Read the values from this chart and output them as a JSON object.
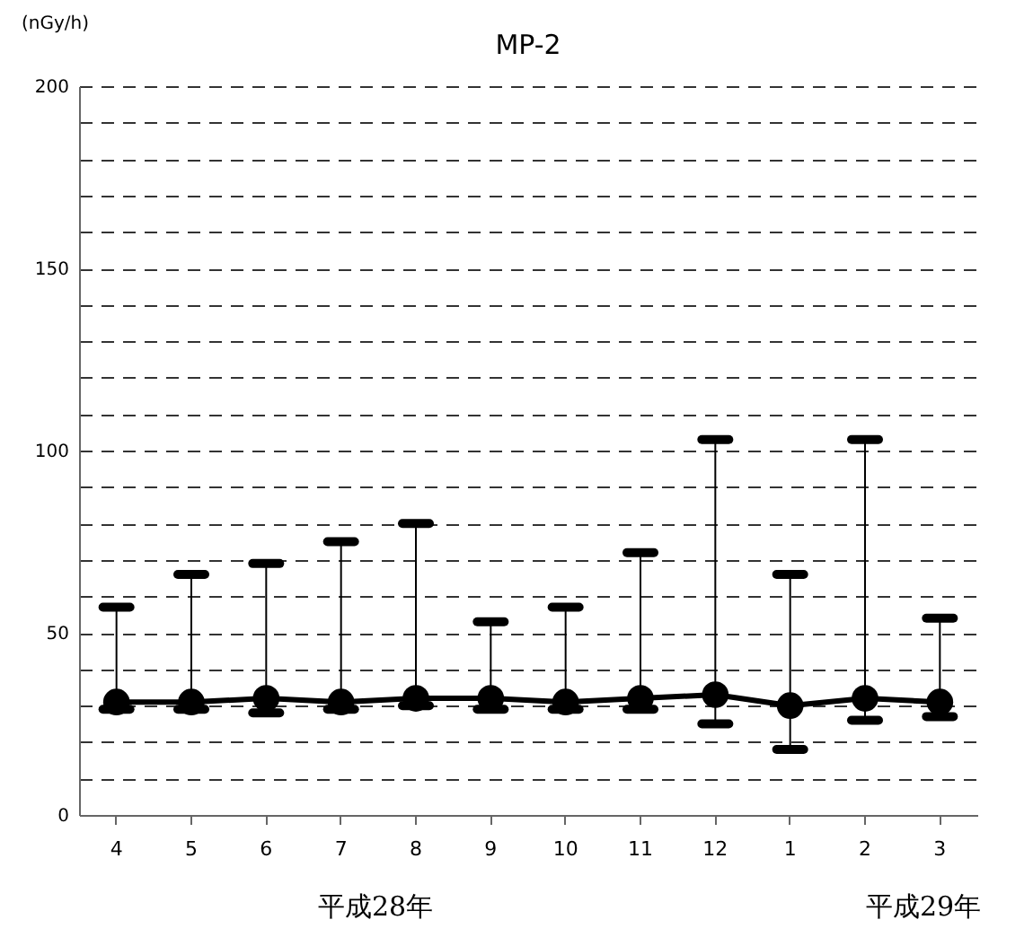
{
  "chart_data": {
    "type": "line",
    "title": "MP-2",
    "ylabel": "(nGy/h)",
    "categories": [
      "4",
      "5",
      "6",
      "7",
      "8",
      "9",
      "10",
      "11",
      "12",
      "1",
      "2",
      "3"
    ],
    "series": [
      {
        "color": "#000000",
        "values": [
          31,
          31,
          32,
          31,
          32,
          32,
          31,
          32,
          33,
          30,
          32,
          31
        ],
        "errors": [
          [
            29,
            57
          ],
          [
            29,
            66
          ],
          [
            28,
            69
          ],
          [
            29,
            75
          ],
          [
            30,
            80
          ],
          [
            29,
            53
          ],
          [
            29,
            57
          ],
          [
            29,
            72
          ],
          [
            25,
            103
          ],
          [
            18,
            66
          ],
          [
            26,
            103
          ],
          [
            27,
            54
          ]
        ]
      }
    ],
    "ylim": [
      0,
      200
    ],
    "yticks": [
      0,
      {
        "value": 10,
        "label": null
      },
      {
        "value": 20,
        "label": null
      },
      {
        "value": 30,
        "label": null
      },
      {
        "value": 40,
        "label": null
      },
      50,
      {
        "value": 60,
        "label": null
      },
      {
        "value": 70,
        "label": null
      },
      {
        "value": 80,
        "label": null
      },
      {
        "value": 90,
        "label": null
      },
      100,
      {
        "value": 110,
        "label": null
      },
      {
        "value": 120,
        "label": null
      },
      {
        "value": 130,
        "label": null
      },
      {
        "value": 140,
        "label": null
      },
      150,
      {
        "value": 160,
        "label": null
      },
      {
        "value": 170,
        "label": null
      },
      {
        "value": 180,
        "label": null
      },
      {
        "value": 190,
        "label": null
      },
      200
    ],
    "grid": "y",
    "marker": "circle",
    "line_style": "solid",
    "annotations": [
      "平成28年",
      "平成29年"
    ]
  }
}
